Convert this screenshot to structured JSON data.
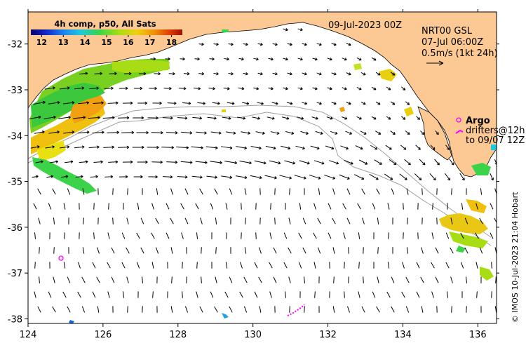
{
  "date_label": "09-Jul-2023 00Z",
  "colorbar": {
    "title": "4h comp, p50, All Sats",
    "ticks": [
      "12",
      "13",
      "14",
      "15",
      "16",
      "17",
      "18"
    ],
    "range": [
      11.5,
      18.5
    ]
  },
  "currents": {
    "product": "NRT00 GSL",
    "time": "07-Jul 06:00Z",
    "scale": "0.5m/s (1kt 24h)"
  },
  "argo": {
    "title": "Argo",
    "line1": "drifters@12h",
    "line2": "to 09/07 12Z"
  },
  "credit": "© IMOS 10-Jul-2023 21:04 Hobart",
  "axes": {
    "x_ticks": [
      "124",
      "126",
      "128",
      "130",
      "132",
      "134",
      "136"
    ],
    "x_values": [
      124,
      126,
      128,
      130,
      132,
      134,
      136
    ],
    "y_ticks": [
      "-32",
      "-33",
      "-34",
      "-35",
      "-36",
      "-37",
      "-38"
    ],
    "y_values": [
      -32,
      -33,
      -34,
      -35,
      -36,
      -37,
      -38
    ],
    "lon_range": [
      124,
      136.5
    ],
    "lat_range": [
      -38.1,
      -31.3
    ]
  },
  "colors": {
    "land": "#fcc894",
    "ocean": "#ffffff",
    "contour": "#9a9a9a",
    "arrow": "#000000",
    "argo": "#ff00ff"
  }
}
